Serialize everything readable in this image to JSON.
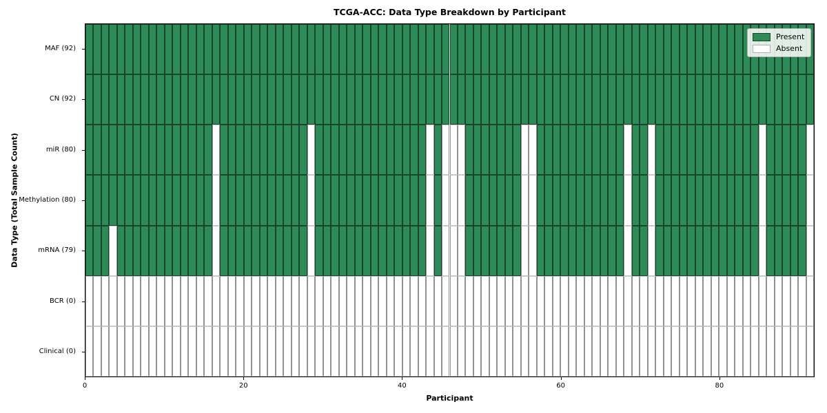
{
  "chart_data": {
    "type": "heatmap",
    "title": "TCGA-ACC: Data Type Breakdown by Participant",
    "xlabel": "Participant",
    "ylabel": "Data Type (Total Sample Count)",
    "n_participants": 92,
    "xlim": [
      0,
      92
    ],
    "x_ticks": [
      0,
      20,
      40,
      60,
      80
    ],
    "rows": [
      {
        "label": "MAF (92)",
        "total_samples": 92,
        "absent_participants": [],
        "all_absent": false
      },
      {
        "label": "CN (92)",
        "total_samples": 92,
        "absent_participants": [],
        "all_absent": false
      },
      {
        "label": "miR (80)",
        "total_samples": 80,
        "absent_participants": [
          16,
          28,
          43,
          45,
          46,
          47,
          55,
          56,
          68,
          71,
          85,
          91
        ],
        "all_absent": false
      },
      {
        "label": "Methylation (80)",
        "total_samples": 80,
        "absent_participants": [
          16,
          28,
          43,
          45,
          46,
          47,
          55,
          56,
          68,
          71,
          85,
          91
        ],
        "all_absent": false
      },
      {
        "label": "mRNA (79)",
        "total_samples": 79,
        "absent_participants": [
          3,
          16,
          28,
          43,
          45,
          46,
          47,
          55,
          56,
          68,
          71,
          85,
          91
        ],
        "all_absent": false
      },
      {
        "label": "BCR (0)",
        "total_samples": 0,
        "absent_participants": [],
        "all_absent": true
      },
      {
        "label": "Clinical (0)",
        "total_samples": 0,
        "absent_participants": [],
        "all_absent": true
      }
    ],
    "legend": {
      "position": "upper right",
      "items": [
        {
          "label": "Present",
          "color": "#2e8b57",
          "edge": "#17452b"
        },
        {
          "label": "Absent",
          "color": "#ffffff",
          "edge": "#b0b0b0"
        }
      ]
    },
    "colors": {
      "present": "#2e8b57",
      "present_edge": "#17452b",
      "absent": "#ffffff",
      "absent_edge": "#929292",
      "frame": "#000000"
    },
    "grid": false
  }
}
